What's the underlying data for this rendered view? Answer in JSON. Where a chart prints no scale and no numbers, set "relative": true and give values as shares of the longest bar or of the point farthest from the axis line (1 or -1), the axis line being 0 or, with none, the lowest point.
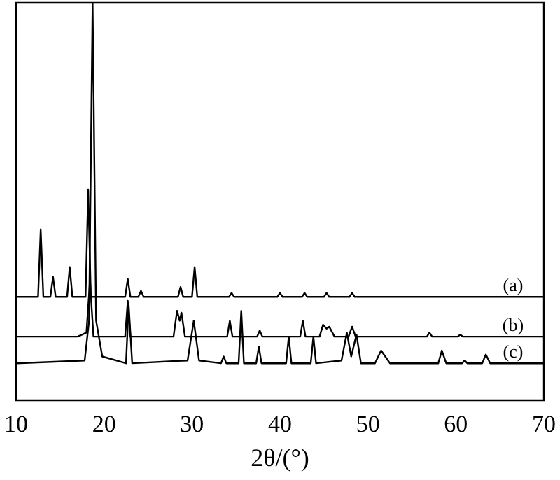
{
  "chart_data": {
    "type": "line",
    "xlabel": "2θ/(°)",
    "relative": true,
    "tick_labels": "x",
    "legend": false,
    "grid": false,
    "marker": "none",
    "line_style": "solid",
    "xlim": [
      10,
      70
    ],
    "xticks": [
      10,
      20,
      30,
      40,
      50,
      60,
      70
    ],
    "series": [
      {
        "name": "(a)",
        "color": "#000000",
        "x": [
          10,
          12.5,
          12.8,
          13.1,
          13.9,
          14.2,
          14.5,
          15.8,
          16.1,
          16.4,
          17.9,
          18.2,
          18.5,
          22.4,
          22.7,
          23.0,
          23.9,
          24.2,
          24.5,
          28.4,
          28.7,
          29.0,
          30.0,
          30.3,
          30.6,
          34.2,
          34.5,
          34.8,
          39.7,
          40.0,
          40.3,
          42.5,
          42.8,
          43.1,
          45.0,
          45.3,
          45.6,
          47.9,
          48.2,
          48.5,
          70
        ],
        "values": [
          0.26,
          0.26,
          0.43,
          0.26,
          0.26,
          0.31,
          0.26,
          0.26,
          0.335,
          0.26,
          0.26,
          0.53,
          0.26,
          0.26,
          0.305,
          0.26,
          0.26,
          0.275,
          0.26,
          0.26,
          0.285,
          0.26,
          0.26,
          0.335,
          0.26,
          0.26,
          0.27,
          0.26,
          0.26,
          0.27,
          0.26,
          0.26,
          0.27,
          0.26,
          0.26,
          0.27,
          0.26,
          0.26,
          0.27,
          0.26,
          0.26
        ]
      },
      {
        "name": "(b)",
        "color": "#000000",
        "x": [
          10,
          17.0,
          18.0,
          18.4,
          18.8,
          22.4,
          22.7,
          23.0,
          27.9,
          28.3,
          28.6,
          28.8,
          29.2,
          34.0,
          34.3,
          34.6,
          37.4,
          37.7,
          38.0,
          42.3,
          42.6,
          42.9,
          44.5,
          44.9,
          45.3,
          45.6,
          46.2,
          47.8,
          48.2,
          48.6,
          56.7,
          57.0,
          57.3,
          60.2,
          60.5,
          60.8,
          70
        ],
        "values": [
          0.16,
          0.16,
          0.17,
          0.3,
          0.16,
          0.16,
          0.25,
          0.16,
          0.16,
          0.225,
          0.2,
          0.22,
          0.16,
          0.16,
          0.2,
          0.16,
          0.16,
          0.175,
          0.16,
          0.16,
          0.2,
          0.16,
          0.16,
          0.19,
          0.18,
          0.185,
          0.16,
          0.16,
          0.185,
          0.16,
          0.16,
          0.17,
          0.16,
          0.16,
          0.165,
          0.16,
          0.16
        ]
      },
      {
        "name": "(c)",
        "color": "#000000",
        "x": [
          10,
          17.8,
          18.3,
          18.7,
          19.1,
          19.8,
          22.5,
          22.8,
          23.2,
          29.5,
          30.2,
          30.8,
          33.3,
          33.6,
          33.9,
          35.3,
          35.6,
          35.9,
          37.3,
          37.6,
          37.9,
          40.7,
          41.0,
          41.3,
          43.5,
          43.8,
          44.1,
          47.0,
          47.6,
          48.1,
          48.7,
          49.2,
          50.8,
          51.5,
          52.5,
          58.0,
          58.4,
          58.9,
          60.7,
          61.0,
          61.3,
          63.0,
          63.4,
          63.9,
          70
        ],
        "values": [
          0.093,
          0.1,
          0.2,
          1.0,
          0.2,
          0.11,
          0.093,
          0.24,
          0.093,
          0.1,
          0.2,
          0.1,
          0.093,
          0.11,
          0.093,
          0.093,
          0.225,
          0.093,
          0.093,
          0.135,
          0.093,
          0.093,
          0.16,
          0.093,
          0.093,
          0.16,
          0.093,
          0.1,
          0.17,
          0.11,
          0.165,
          0.093,
          0.093,
          0.125,
          0.093,
          0.093,
          0.125,
          0.093,
          0.093,
          0.1,
          0.093,
          0.093,
          0.115,
          0.093,
          0.093
        ]
      }
    ]
  }
}
